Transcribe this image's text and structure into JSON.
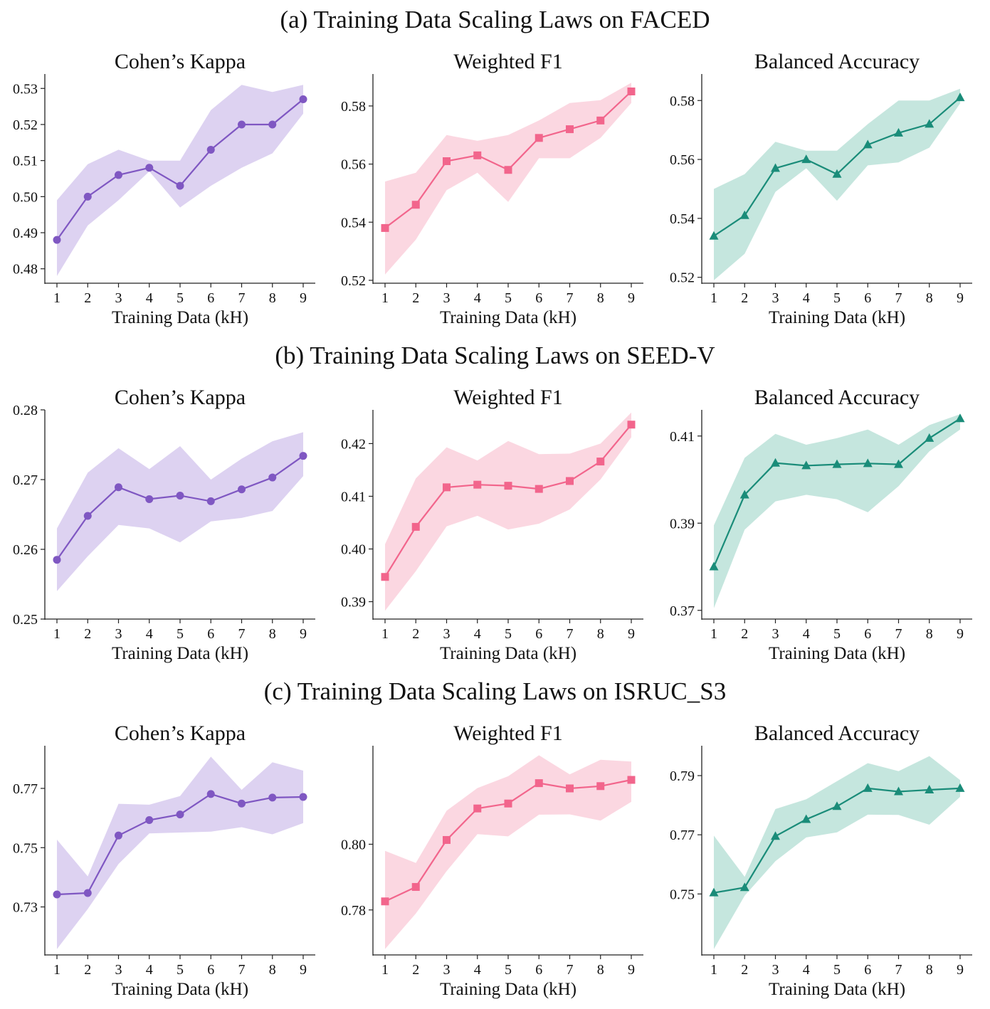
{
  "chart_data": [
    {
      "group": "(a) Training Data Scaling Laws on FACED",
      "panels": [
        {
          "type": "line",
          "title": "Cohen’s Kappa",
          "xlabel": "Training Data (kH)",
          "ylabel": "",
          "x": [
            1,
            2,
            3,
            4,
            5,
            6,
            7,
            8,
            9
          ],
          "values": [
            0.488,
            0.5,
            0.506,
            0.508,
            0.503,
            0.513,
            0.52,
            0.52,
            0.527
          ],
          "lower": [
            0.478,
            0.492,
            0.499,
            0.507,
            0.497,
            0.503,
            0.508,
            0.512,
            0.523
          ],
          "upper": [
            0.499,
            0.509,
            0.513,
            0.51,
            0.51,
            0.524,
            0.531,
            0.529,
            0.531
          ],
          "ylim": [
            0.476,
            0.534
          ],
          "yticks": [
            "0.48",
            "0.49",
            "0.50",
            "0.51",
            "0.52",
            "0.53"
          ],
          "color": "#7f57c2",
          "fill": "#d9cdf0",
          "marker": "circle"
        },
        {
          "type": "line",
          "title": "Weighted F1",
          "xlabel": "Training Data (kH)",
          "ylabel": "",
          "x": [
            1,
            2,
            3,
            4,
            5,
            6,
            7,
            8,
            9
          ],
          "values": [
            0.538,
            0.546,
            0.561,
            0.563,
            0.558,
            0.569,
            0.572,
            0.575,
            0.585
          ],
          "lower": [
            0.522,
            0.534,
            0.551,
            0.557,
            0.547,
            0.562,
            0.562,
            0.569,
            0.581
          ],
          "upper": [
            0.554,
            0.557,
            0.57,
            0.568,
            0.57,
            0.575,
            0.581,
            0.582,
            0.588
          ],
          "ylim": [
            0.519,
            0.591
          ],
          "yticks": [
            "0.52",
            "0.54",
            "0.56",
            "0.58"
          ],
          "color": "#f2658c",
          "fill": "#fbd3de",
          "marker": "square"
        },
        {
          "type": "line",
          "title": "Balanced Accuracy",
          "xlabel": "Training Data (kH)",
          "ylabel": "",
          "x": [
            1,
            2,
            3,
            4,
            5,
            6,
            7,
            8,
            9
          ],
          "values": [
            0.534,
            0.541,
            0.557,
            0.56,
            0.555,
            0.565,
            0.569,
            0.572,
            0.581
          ],
          "lower": [
            0.519,
            0.528,
            0.549,
            0.557,
            0.546,
            0.558,
            0.559,
            0.564,
            0.579
          ],
          "upper": [
            0.55,
            0.555,
            0.566,
            0.563,
            0.563,
            0.572,
            0.58,
            0.58,
            0.584
          ],
          "ylim": [
            0.518,
            0.589
          ],
          "yticks": [
            "0.52",
            "0.54",
            "0.56",
            "0.58"
          ],
          "color": "#1a8c79",
          "fill": "#bfe3da",
          "marker": "triangle"
        }
      ]
    },
    {
      "group": "(b) Training Data Scaling Laws on SEED-V",
      "panels": [
        {
          "type": "line",
          "title": "Cohen’s Kappa",
          "xlabel": "Training Data (kH)",
          "ylabel": "",
          "x": [
            1,
            2,
            3,
            4,
            5,
            6,
            7,
            8,
            9
          ],
          "values": [
            0.2585,
            0.2648,
            0.2689,
            0.2672,
            0.2677,
            0.2669,
            0.2686,
            0.2703,
            0.2734
          ],
          "lower": [
            0.254,
            0.259,
            0.2635,
            0.263,
            0.261,
            0.264,
            0.2645,
            0.2655,
            0.2705
          ],
          "upper": [
            0.263,
            0.271,
            0.2745,
            0.2715,
            0.2748,
            0.27,
            0.273,
            0.2755,
            0.2768
          ],
          "ylim": [
            0.25,
            0.28
          ],
          "yticks": [
            "0.25",
            "0.26",
            "0.27",
            "0.28"
          ],
          "color": "#7f57c2",
          "fill": "#d9cdf0",
          "marker": "circle"
        },
        {
          "type": "line",
          "title": "Weighted F1",
          "xlabel": "Training Data (kH)",
          "ylabel": "",
          "x": [
            1,
            2,
            3,
            4,
            5,
            6,
            7,
            8,
            9
          ],
          "values": [
            0.3947,
            0.4042,
            0.4117,
            0.4122,
            0.412,
            0.4114,
            0.4129,
            0.4166,
            0.4236
          ],
          "lower": [
            0.3883,
            0.3958,
            0.4043,
            0.4063,
            0.4037,
            0.4048,
            0.4075,
            0.4132,
            0.4212
          ],
          "upper": [
            0.4009,
            0.4134,
            0.4193,
            0.4168,
            0.4205,
            0.418,
            0.4181,
            0.42,
            0.4259
          ],
          "ylim": [
            0.3867,
            0.4264
          ],
          "yticks": [
            "0.39",
            "0.40",
            "0.41",
            "0.42"
          ],
          "color": "#f2658c",
          "fill": "#fbd3de",
          "marker": "square"
        },
        {
          "type": "line",
          "title": "Balanced Accuracy",
          "xlabel": "Training Data (kH)",
          "ylabel": "",
          "x": [
            1,
            2,
            3,
            4,
            5,
            6,
            7,
            8,
            9
          ],
          "values": [
            0.38,
            0.3965,
            0.4038,
            0.4032,
            0.4035,
            0.4037,
            0.4035,
            0.4095,
            0.414
          ],
          "lower": [
            0.3705,
            0.3885,
            0.395,
            0.3965,
            0.3955,
            0.3925,
            0.3985,
            0.4065,
            0.4115
          ],
          "upper": [
            0.3895,
            0.405,
            0.4105,
            0.408,
            0.4095,
            0.4115,
            0.408,
            0.4125,
            0.415
          ],
          "ylim": [
            0.368,
            0.416
          ],
          "yticks": [
            "0.37",
            "0.39",
            "0.41"
          ],
          "color": "#1a8c79",
          "fill": "#bfe3da",
          "marker": "triangle"
        }
      ]
    },
    {
      "group": "(c) Training Data Scaling Laws on ISRUC_S3",
      "panels": [
        {
          "type": "line",
          "title": "Cohen’s Kappa",
          "xlabel": "Training Data (kH)",
          "ylabel": "",
          "x": [
            1,
            2,
            3,
            4,
            5,
            6,
            7,
            8,
            9
          ],
          "values": [
            0.7342,
            0.7347,
            0.7541,
            0.7593,
            0.7612,
            0.7681,
            0.7649,
            0.7669,
            0.7671
          ],
          "lower": [
            0.7158,
            0.7293,
            0.7445,
            0.7548,
            0.7551,
            0.7554,
            0.7569,
            0.7545,
            0.7583
          ],
          "upper": [
            0.7527,
            0.7403,
            0.7648,
            0.7645,
            0.7674,
            0.7807,
            0.7695,
            0.7788,
            0.776
          ],
          "ylim": [
            0.7138,
            0.7844
          ],
          "yticks": [
            "0.73",
            "0.75",
            "0.77"
          ],
          "color": "#7f57c2",
          "fill": "#d9cdf0",
          "marker": "circle"
        },
        {
          "type": "line",
          "title": "Weighted F1",
          "xlabel": "Training Data (kH)",
          "ylabel": "",
          "x": [
            1,
            2,
            3,
            4,
            5,
            6,
            7,
            8,
            9
          ],
          "values": [
            0.7826,
            0.787,
            0.8013,
            0.8109,
            0.8124,
            0.8186,
            0.817,
            0.8177,
            0.8196
          ],
          "lower": [
            0.7681,
            0.7789,
            0.7918,
            0.8031,
            0.8024,
            0.809,
            0.8091,
            0.8072,
            0.8129
          ],
          "upper": [
            0.798,
            0.7943,
            0.8102,
            0.8171,
            0.8207,
            0.8271,
            0.8213,
            0.8257,
            0.8252
          ],
          "ylim": [
            0.7663,
            0.83
          ],
          "yticks": [
            "0.78",
            "0.80"
          ],
          "color": "#f2658c",
          "fill": "#fbd3de",
          "marker": "square"
        },
        {
          "type": "line",
          "title": "Balanced Accuracy",
          "xlabel": "Training Data (kH)",
          "ylabel": "",
          "x": [
            1,
            2,
            3,
            4,
            5,
            6,
            7,
            8,
            9
          ],
          "values": [
            0.7504,
            0.7522,
            0.7695,
            0.7752,
            0.7796,
            0.7857,
            0.7846,
            0.7852,
            0.7857
          ],
          "lower": [
            0.7314,
            0.7494,
            0.7611,
            0.7691,
            0.7708,
            0.7768,
            0.7767,
            0.7734,
            0.7828
          ],
          "upper": [
            0.7697,
            0.7558,
            0.7787,
            0.782,
            0.7881,
            0.7942,
            0.7915,
            0.7966,
            0.7885
          ],
          "ylim": [
            0.7294,
            0.8001
          ],
          "yticks": [
            "0.75",
            "0.77",
            "0.79"
          ],
          "color": "#1a8c79",
          "fill": "#bfe3da",
          "marker": "triangle"
        }
      ]
    }
  ]
}
